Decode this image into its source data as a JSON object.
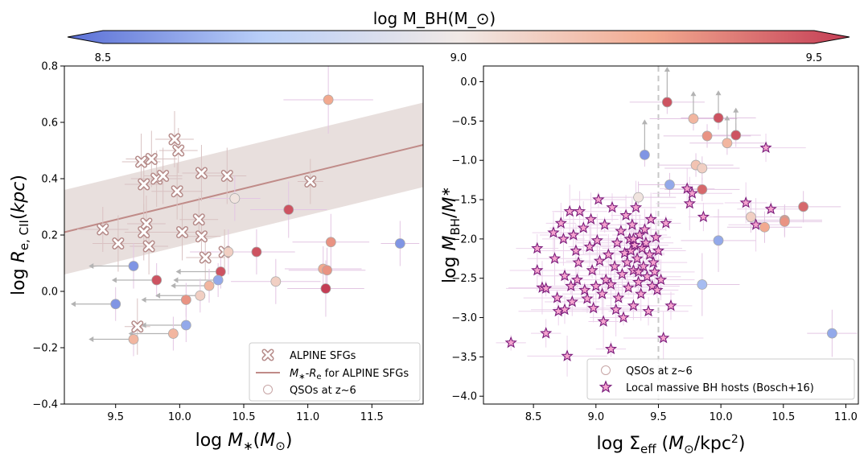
{
  "colorbar": {
    "title": "log M_BH(M_⊙)",
    "vmin": 8.5,
    "vmax": 9.5,
    "ticks": [
      "8.5",
      "9.0",
      "9.5"
    ],
    "stops": [
      "#5a6fd6",
      "#b9cff8",
      "#f1e9e6",
      "#f2a98f",
      "#c43d55"
    ]
  },
  "chart_data": [
    {
      "type": "scatter",
      "panel": "left",
      "xlabel": "log M_*(M_⊙)",
      "ylabel": "log R_e,CII(kpc)",
      "xlim": [
        9.1,
        11.9
      ],
      "ylim": [
        -0.4,
        0.8
      ],
      "xticks": [
        "9.5",
        "10.0",
        "10.5",
        "11.0",
        "11.5"
      ],
      "yticks": [
        "−0.4",
        "−0.2",
        "0.0",
        "0.2",
        "0.4",
        "0.6",
        "0.8"
      ],
      "legend": {
        "position": "lower-right",
        "entries": [
          "ALPINE SFGs",
          "M_*-R_e for ALPINE SFGs",
          "QSOs at z~6"
        ]
      },
      "relation": {
        "name": "M_*-R_e for ALPINE SFGs",
        "x": [
          9.1,
          11.9
        ],
        "y": [
          0.21,
          0.52
        ],
        "band_lo": [
          0.06,
          0.37
        ],
        "band_hi": [
          0.36,
          0.67
        ],
        "color": "#c08b88"
      },
      "alpine_sfgs": [
        {
          "x": 9.4,
          "y": 0.22,
          "xe": 0.2,
          "ye": 0.08
        },
        {
          "x": 9.52,
          "y": 0.17,
          "xe": 0.2,
          "ye": 0.1
        },
        {
          "x": 9.7,
          "y": 0.46,
          "xe": 0.15,
          "ye": 0.1
        },
        {
          "x": 9.78,
          "y": 0.47,
          "xe": 0.2,
          "ye": 0.1
        },
        {
          "x": 9.72,
          "y": 0.38,
          "xe": 0.15,
          "ye": 0.1
        },
        {
          "x": 9.82,
          "y": 0.4,
          "xe": 0.2,
          "ye": 0.1
        },
        {
          "x": 9.87,
          "y": 0.41,
          "xe": 0.15,
          "ye": 0.1
        },
        {
          "x": 9.74,
          "y": 0.24,
          "xe": 0.15,
          "ye": 0.1
        },
        {
          "x": 9.72,
          "y": 0.21,
          "xe": 0.15,
          "ye": 0.1
        },
        {
          "x": 9.76,
          "y": 0.16,
          "xe": 0.15,
          "ye": 0.1
        },
        {
          "x": 9.96,
          "y": 0.54,
          "xe": 0.15,
          "ye": 0.1
        },
        {
          "x": 9.99,
          "y": 0.5,
          "xe": 0.15,
          "ye": 0.08
        },
        {
          "x": 9.98,
          "y": 0.355,
          "xe": 0.2,
          "ye": 0.1
        },
        {
          "x": 10.02,
          "y": 0.21,
          "xe": 0.2,
          "ye": 0.1
        },
        {
          "x": 10.17,
          "y": 0.42,
          "xe": 0.15,
          "ye": 0.1
        },
        {
          "x": 10.15,
          "y": 0.255,
          "xe": 0.15,
          "ye": 0.08
        },
        {
          "x": 10.17,
          "y": 0.195,
          "xe": 0.15,
          "ye": 0.08
        },
        {
          "x": 10.2,
          "y": 0.12,
          "xe": 0.15,
          "ye": 0.08
        },
        {
          "x": 10.37,
          "y": 0.41,
          "xe": 0.15,
          "ye": 0.1
        },
        {
          "x": 10.35,
          "y": 0.14,
          "xe": 0.2,
          "ye": 0.08
        },
        {
          "x": 11.02,
          "y": 0.39,
          "xe": 0.1,
          "ye": 0.08
        },
        {
          "x": 9.67,
          "y": -0.125,
          "xe": 0.1,
          "ye": 0.1
        }
      ],
      "qsos": [
        {
          "x": 11.16,
          "y": 0.68,
          "c": 9.25,
          "xe": 0.35,
          "ye": 0.12
        },
        {
          "x": 10.43,
          "y": 0.33,
          "c": 9.02,
          "xe": 0.2,
          "ye": 0.08
        },
        {
          "x": 10.85,
          "y": 0.29,
          "c": 9.45,
          "xe": 0.3,
          "ye": 0.1
        },
        {
          "x": 11.18,
          "y": 0.175,
          "c": 9.3,
          "xe": 0.3,
          "ye": 0.1
        },
        {
          "x": 11.72,
          "y": 0.17,
          "c": 8.6,
          "xe": 0.15,
          "ye": 0.08
        },
        {
          "x": 10.38,
          "y": 0.14,
          "c": 9.1,
          "xe": 0.3,
          "ye": 0.08
        },
        {
          "x": 10.6,
          "y": 0.14,
          "c": 9.45,
          "xe": 0.3,
          "ye": 0.08
        },
        {
          "x": 9.64,
          "y": 0.09,
          "c": 8.6,
          "xe": 0.0,
          "ye": 0.08,
          "arrow": 0.35
        },
        {
          "x": 11.12,
          "y": 0.08,
          "c": 9.25,
          "xe": 0.3,
          "ye": 0.08
        },
        {
          "x": 11.15,
          "y": 0.075,
          "c": 9.3,
          "xe": 0.3,
          "ye": 0.08
        },
        {
          "x": 10.32,
          "y": 0.07,
          "c": 9.45,
          "xe": 0.0,
          "ye": 0.06,
          "arrow": 0.35
        },
        {
          "x": 10.3,
          "y": 0.04,
          "c": 8.65,
          "xe": 0.0,
          "ye": 0.06,
          "arrow": 0.35
        },
        {
          "x": 9.82,
          "y": 0.04,
          "c": 9.45,
          "xe": 0.0,
          "ye": 0.06,
          "arrow": 0.35
        },
        {
          "x": 10.75,
          "y": 0.035,
          "c": 9.1,
          "xe": 0.35,
          "ye": 0.08
        },
        {
          "x": 10.23,
          "y": 0.02,
          "c": 9.2,
          "xe": 0.0,
          "ye": 0.06,
          "arrow": 0.3
        },
        {
          "x": 11.14,
          "y": 0.01,
          "c": 9.5,
          "xe": 0.3,
          "ye": 0.1
        },
        {
          "x": 10.16,
          "y": -0.015,
          "c": 9.1,
          "xe": 0.0,
          "ye": 0.06,
          "arrow": 0.35
        },
        {
          "x": 10.05,
          "y": -0.03,
          "c": 9.3,
          "xe": 0.0,
          "ye": 0.06,
          "arrow": 0.35
        },
        {
          "x": 9.5,
          "y": -0.045,
          "c": 8.6,
          "xe": 0.0,
          "ye": 0.06,
          "arrow": 0.35
        },
        {
          "x": 10.05,
          "y": -0.12,
          "c": 8.65,
          "xe": 0.0,
          "ye": 0.06,
          "arrow": 0.35
        },
        {
          "x": 9.95,
          "y": -0.15,
          "c": 9.2,
          "xe": 0.0,
          "ye": 0.06,
          "arrow": 0.35
        },
        {
          "x": 9.64,
          "y": -0.17,
          "c": 9.2,
          "xe": 0.0,
          "ye": 0.06,
          "arrow": 0.35
        }
      ]
    },
    {
      "type": "scatter",
      "panel": "right",
      "xlabel": "log Σ_eff (M_⊙/kpc^2)",
      "ylabel": "log M_BH/M_*",
      "xlim": [
        8.1,
        11.1
      ],
      "ylim": [
        -4.1,
        0.2
      ],
      "xticks": [
        "8.5",
        "9.0",
        "9.5",
        "10.0",
        "10.5",
        "11.0"
      ],
      "yticks": [
        "0.0",
        "−0.5",
        "−1.0",
        "−1.5",
        "−2.0",
        "−2.5",
        "−3.0",
        "−3.5",
        "−4.0"
      ],
      "vline_x": 9.5,
      "legend": {
        "position": "lower-right",
        "entries": [
          "QSOs at z~6",
          "Local massive BH hosts (Bosch+16)"
        ]
      },
      "qsos": [
        {
          "x": 9.57,
          "y": -0.26,
          "c": 9.45,
          "xe": 0.3,
          "ye": 0.15,
          "arrow": 0.45
        },
        {
          "x": 9.78,
          "y": -0.47,
          "c": 9.2,
          "xe": 0.35,
          "ye": 0.15,
          "arrow": 0.35
        },
        {
          "x": 9.98,
          "y": -0.46,
          "c": 9.45,
          "xe": 0.3,
          "ye": 0.15,
          "arrow": 0.35
        },
        {
          "x": 9.89,
          "y": -0.69,
          "c": 9.3,
          "xe": 0.35,
          "ye": 0.15
        },
        {
          "x": 10.12,
          "y": -0.68,
          "c": 9.45,
          "xe": 0.2,
          "ye": 0.15,
          "arrow": 0.35
        },
        {
          "x": 10.05,
          "y": -0.78,
          "c": 9.2,
          "xe": 0.3,
          "ye": 0.15,
          "arrow": 0.35
        },
        {
          "x": 9.39,
          "y": -0.93,
          "c": 8.6,
          "xe": 0.0,
          "ye": 0.15,
          "arrow": 0.45
        },
        {
          "x": 9.8,
          "y": -1.06,
          "c": 9.15,
          "xe": 0.3,
          "ye": 0.15
        },
        {
          "x": 9.85,
          "y": -1.1,
          "c": 9.1,
          "xe": 0.3,
          "ye": 0.15
        },
        {
          "x": 9.59,
          "y": -1.31,
          "c": 8.65,
          "xe": 0.25,
          "ye": 0.15
        },
        {
          "x": 9.85,
          "y": -1.37,
          "c": 9.4,
          "xe": 0.3,
          "ye": 0.15
        },
        {
          "x": 9.34,
          "y": -1.47,
          "c": 9.02,
          "xe": 0.3,
          "ye": 0.2
        },
        {
          "x": 10.66,
          "y": -1.59,
          "c": 9.4,
          "xe": 0.3,
          "ye": 0.2
        },
        {
          "x": 10.24,
          "y": -1.72,
          "c": 9.1,
          "xe": 0.3,
          "ye": 0.2
        },
        {
          "x": 10.51,
          "y": -1.76,
          "c": 9.3,
          "xe": 0.3,
          "ye": 0.2
        },
        {
          "x": 10.51,
          "y": -1.78,
          "c": 9.3,
          "xe": 0.3,
          "ye": 0.2
        },
        {
          "x": 10.35,
          "y": -1.85,
          "c": 9.25,
          "xe": 0.3,
          "ye": 0.2
        },
        {
          "x": 9.98,
          "y": -2.02,
          "c": 8.65,
          "xe": 0.3,
          "ye": 0.4
        },
        {
          "x": 9.85,
          "y": -2.58,
          "c": 8.7,
          "xe": 0.3,
          "ye": 0.4
        },
        {
          "x": 10.89,
          "y": -3.2,
          "c": 8.65,
          "xe": 0.2,
          "ye": 0.3
        }
      ],
      "bosch16": [
        {
          "x": 8.32,
          "y": -3.32
        },
        {
          "x": 8.53,
          "y": -2.12
        },
        {
          "x": 8.53,
          "y": -2.4
        },
        {
          "x": 8.57,
          "y": -2.62
        },
        {
          "x": 8.6,
          "y": -2.63
        },
        {
          "x": 8.6,
          "y": -3.2
        },
        {
          "x": 8.66,
          "y": -1.92
        },
        {
          "x": 8.67,
          "y": -2.25
        },
        {
          "x": 8.69,
          "y": -2.75
        },
        {
          "x": 8.7,
          "y": -2.92
        },
        {
          "x": 8.72,
          "y": -1.8
        },
        {
          "x": 8.74,
          "y": -2.0
        },
        {
          "x": 8.75,
          "y": -2.47
        },
        {
          "x": 8.75,
          "y": -2.9
        },
        {
          "x": 8.77,
          "y": -3.49
        },
        {
          "x": 8.79,
          "y": -1.65
        },
        {
          "x": 8.8,
          "y": -2.6
        },
        {
          "x": 8.81,
          "y": -2.8
        },
        {
          "x": 8.82,
          "y": -1.95
        },
        {
          "x": 8.84,
          "y": -2.15
        },
        {
          "x": 8.85,
          "y": -2.52
        },
        {
          "x": 8.86,
          "y": -2.3
        },
        {
          "x": 8.87,
          "y": -1.65
        },
        {
          "x": 8.9,
          "y": -1.86
        },
        {
          "x": 8.91,
          "y": -2.65
        },
        {
          "x": 8.93,
          "y": -2.76
        },
        {
          "x": 8.95,
          "y": -2.1
        },
        {
          "x": 8.96,
          "y": -1.75
        },
        {
          "x": 8.97,
          "y": -2.4
        },
        {
          "x": 8.98,
          "y": -2.88
        },
        {
          "x": 9.0,
          "y": -2.6
        },
        {
          "x": 9.01,
          "y": -2.02
        },
        {
          "x": 9.02,
          "y": -1.5
        },
        {
          "x": 9.03,
          "y": -2.28
        },
        {
          "x": 9.05,
          "y": -2.7
        },
        {
          "x": 9.06,
          "y": -3.05
        },
        {
          "x": 9.07,
          "y": -1.82
        },
        {
          "x": 9.08,
          "y": -2.52
        },
        {
          "x": 9.1,
          "y": -2.2
        },
        {
          "x": 9.12,
          "y": -2.58
        },
        {
          "x": 9.12,
          "y": -3.4
        },
        {
          "x": 9.13,
          "y": -1.6
        },
        {
          "x": 9.15,
          "y": -2.35
        },
        {
          "x": 9.16,
          "y": -2.9
        },
        {
          "x": 9.17,
          "y": -2.05
        },
        {
          "x": 9.18,
          "y": -2.75
        },
        {
          "x": 9.2,
          "y": -1.9
        },
        {
          "x": 9.21,
          "y": -2.45
        },
        {
          "x": 9.22,
          "y": -3.0
        },
        {
          "x": 9.23,
          "y": -2.18
        },
        {
          "x": 9.24,
          "y": -1.7
        },
        {
          "x": 9.25,
          "y": -2.3
        },
        {
          "x": 9.26,
          "y": -2.62
        },
        {
          "x": 9.27,
          "y": -2.0
        },
        {
          "x": 9.28,
          "y": -2.15
        },
        {
          "x": 9.29,
          "y": -1.82
        },
        {
          "x": 9.3,
          "y": -2.4
        },
        {
          "x": 9.3,
          "y": -2.85
        },
        {
          "x": 9.31,
          "y": -2.08
        },
        {
          "x": 9.32,
          "y": -1.6
        },
        {
          "x": 9.33,
          "y": -2.25
        },
        {
          "x": 9.34,
          "y": -2.55
        },
        {
          "x": 9.35,
          "y": -1.95
        },
        {
          "x": 9.36,
          "y": -2.7
        },
        {
          "x": 9.37,
          "y": -2.12
        },
        {
          "x": 9.38,
          "y": -2.35
        },
        {
          "x": 9.39,
          "y": -1.88
        },
        {
          "x": 9.4,
          "y": -2.05
        },
        {
          "x": 9.41,
          "y": -2.48
        },
        {
          "x": 9.42,
          "y": -2.92
        },
        {
          "x": 9.43,
          "y": -2.2
        },
        {
          "x": 9.44,
          "y": -1.75
        },
        {
          "x": 9.45,
          "y": -2.6
        },
        {
          "x": 9.46,
          "y": -2.3
        },
        {
          "x": 9.47,
          "y": -2.42
        },
        {
          "x": 9.48,
          "y": -1.98
        },
        {
          "x": 9.49,
          "y": -2.65
        },
        {
          "x": 9.5,
          "y": -2.15
        },
        {
          "x": 9.52,
          "y": -2.52
        },
        {
          "x": 9.54,
          "y": -3.26
        },
        {
          "x": 9.56,
          "y": -1.8
        },
        {
          "x": 9.6,
          "y": -2.85
        },
        {
          "x": 9.73,
          "y": -1.36
        },
        {
          "x": 9.75,
          "y": -1.55
        },
        {
          "x": 9.77,
          "y": -1.42
        },
        {
          "x": 9.86,
          "y": -1.72
        },
        {
          "x": 10.2,
          "y": -1.54
        },
        {
          "x": 10.28,
          "y": -1.82
        },
        {
          "x": 10.4,
          "y": -1.62
        },
        {
          "x": 10.36,
          "y": -0.84
        },
        {
          "x": 9.3,
          "y": -2.0
        },
        {
          "x": 9.34,
          "y": -2.42
        }
      ]
    }
  ]
}
